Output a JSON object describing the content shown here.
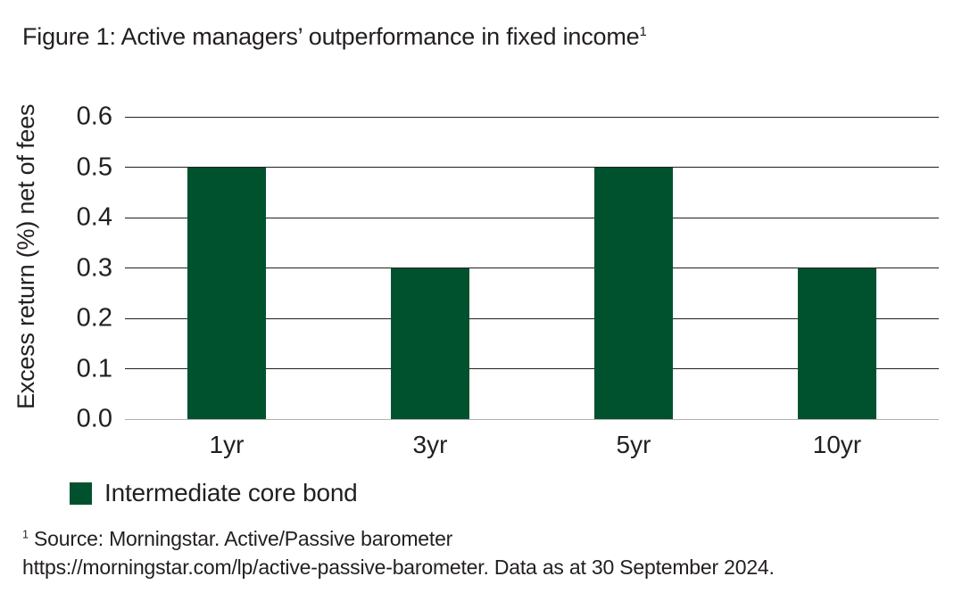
{
  "title": "Figure 1: Active managers’ outperformance in fixed income",
  "title_superscript": "1",
  "chart_data": {
    "type": "bar",
    "categories": [
      "1yr",
      "3yr",
      "5yr",
      "10yr"
    ],
    "series": [
      {
        "name": "Intermediate core bond",
        "values": [
          0.5,
          0.3,
          0.5,
          0.3
        ],
        "color": "#00522f"
      }
    ],
    "title": "Figure 1: Active managers’ outperformance in fixed income",
    "xlabel": "",
    "ylabel": "Excess return (%) net of fees",
    "ylim": [
      0,
      0.6
    ],
    "yticks": [
      0,
      0.1,
      0.2,
      0.3,
      0.4,
      0.5,
      0.6
    ],
    "ytick_labels": [
      "0.0",
      "0.1",
      "0.2",
      "0.3",
      "0.4",
      "0.5",
      "0.6"
    ],
    "grid": true,
    "legend_position": "bottom-left"
  },
  "legend": {
    "items": [
      {
        "label": "Intermediate core bond",
        "color": "#00522f"
      }
    ]
  },
  "footnote": {
    "superscript": "1",
    "line1": " Source: Morningstar. Active/Passive barometer",
    "line2": "https://morningstar.com/lp/active-passive-barometer. Data as at 30 September 2024."
  },
  "colors": {
    "bar": "#00522f",
    "gridline": "#231f20",
    "baseline": "#b2b2b2",
    "text": "#231f20",
    "background": "#ffffff"
  }
}
